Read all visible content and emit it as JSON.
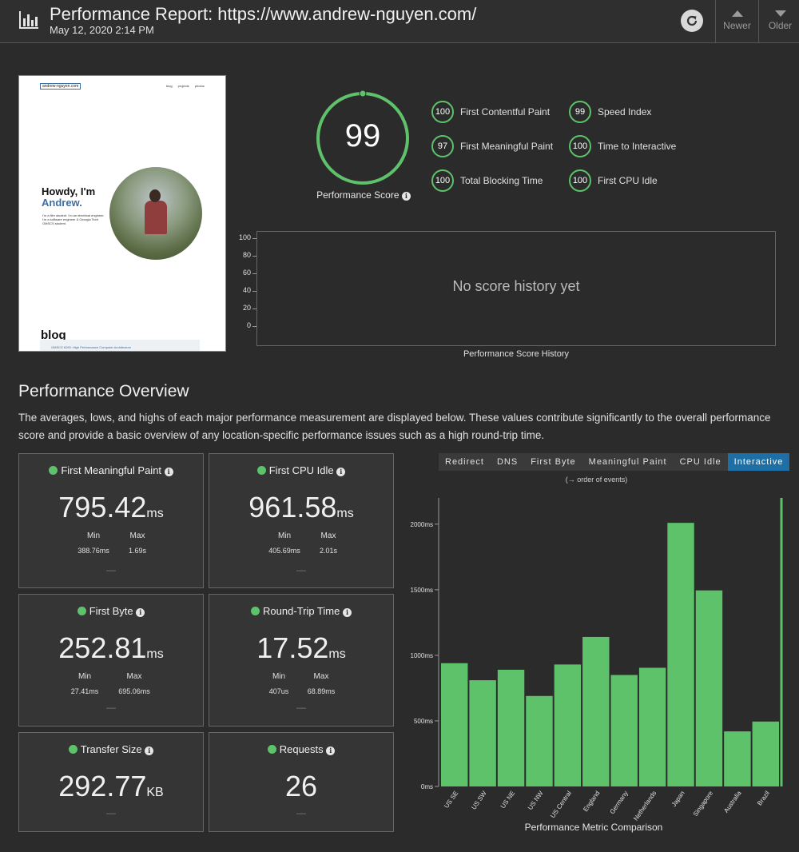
{
  "header": {
    "title": "Performance Report: https://www.andrew-nguyen.com/",
    "date": "May 12, 2020 2:14 PM",
    "newer_label": "Newer",
    "older_label": "Older"
  },
  "thumbnail": {
    "site_url": "andrew-nguyen.com",
    "nav": "blog projects photos",
    "greeting": "Howdy, I'm",
    "name": "Andrew.",
    "blurb": "I'm a film student. I'm an electrical engineer. I'm a software engineer & Georgia Tech OMSCS student.",
    "blog_heading": "blog",
    "blog_post": "OMSCS 6290: High Performance Computer Architecture"
  },
  "score": {
    "value": "99",
    "fraction": 0.99,
    "label": "Performance Score"
  },
  "metrics": [
    {
      "score": "100",
      "label": "First Contentful Paint"
    },
    {
      "score": "99",
      "label": "Speed Index"
    },
    {
      "score": "97",
      "label": "First Meaningful Paint"
    },
    {
      "score": "100",
      "label": "Time to Interactive"
    },
    {
      "score": "100",
      "label": "Total Blocking Time"
    },
    {
      "score": "100",
      "label": "First CPU Idle"
    }
  ],
  "history": {
    "y_ticks": [
      "100",
      "80",
      "60",
      "40",
      "20",
      "0"
    ],
    "empty_message": "No score history yet",
    "caption": "Performance Score History"
  },
  "overview": {
    "title": "Performance Overview",
    "description": "The averages, lows, and highs of each major performance measurement are displayed below. These values contribute significantly to the overall performance score and provide a basic overview of any location-specific performance issues such as a high round-trip time.",
    "cards": [
      {
        "title": "First Meaningful Paint",
        "value": "795.42",
        "unit": "ms",
        "min_label": "Min",
        "max_label": "Max",
        "min": "388.76",
        "min_unit": "ms",
        "max": "1.69",
        "max_unit": "s",
        "dash": "—"
      },
      {
        "title": "First CPU Idle",
        "value": "961.58",
        "unit": "ms",
        "min_label": "Min",
        "max_label": "Max",
        "min": "405.69",
        "min_unit": "ms",
        "max": "2.01",
        "max_unit": "s",
        "dash": "—"
      },
      {
        "title": "First Byte",
        "value": "252.81",
        "unit": "ms",
        "min_label": "Min",
        "max_label": "Max",
        "min": "27.41",
        "min_unit": "ms",
        "max": "695.06",
        "max_unit": "ms",
        "dash": "—"
      },
      {
        "title": "Round-Trip Time",
        "value": "17.52",
        "unit": "ms",
        "min_label": "Min",
        "max_label": "Max",
        "min": "407",
        "min_unit": "us",
        "max": "68.89",
        "max_unit": "ms",
        "dash": "—"
      },
      {
        "title": "Transfer Size",
        "value": "292.77",
        "unit": "KB",
        "dash": "—"
      },
      {
        "title": "Requests",
        "value": "26",
        "unit": "",
        "dash": "—"
      }
    ]
  },
  "comparison": {
    "tabs": [
      "Redirect",
      "DNS",
      "First Byte",
      "Meaningful Paint",
      "CPU Idle",
      "Interactive"
    ],
    "active_tab": "Interactive",
    "order_note": "(→ order of events)",
    "caption": "Performance Metric Comparison"
  },
  "colors": {
    "good": "#5ec26a",
    "accent": "#1d6fa5",
    "background": "#2b2b2b"
  },
  "chart_data": {
    "type": "bar",
    "categories": [
      "US SE",
      "US SW",
      "US NE",
      "US NW",
      "US Central",
      "England",
      "Germany",
      "Netherlands",
      "Japan",
      "Singapore",
      "Australia",
      "Brazil"
    ],
    "values": [
      940,
      810,
      890,
      690,
      930,
      1140,
      850,
      905,
      2010,
      1495,
      420,
      495
    ],
    "y_tick_labels": [
      "0ms",
      "500ms",
      "1000ms",
      "1500ms",
      "2000ms"
    ],
    "ylim": [
      0,
      2200
    ],
    "grid": false,
    "xlabel": "Performance Metric Comparison",
    "ylabel": ""
  }
}
